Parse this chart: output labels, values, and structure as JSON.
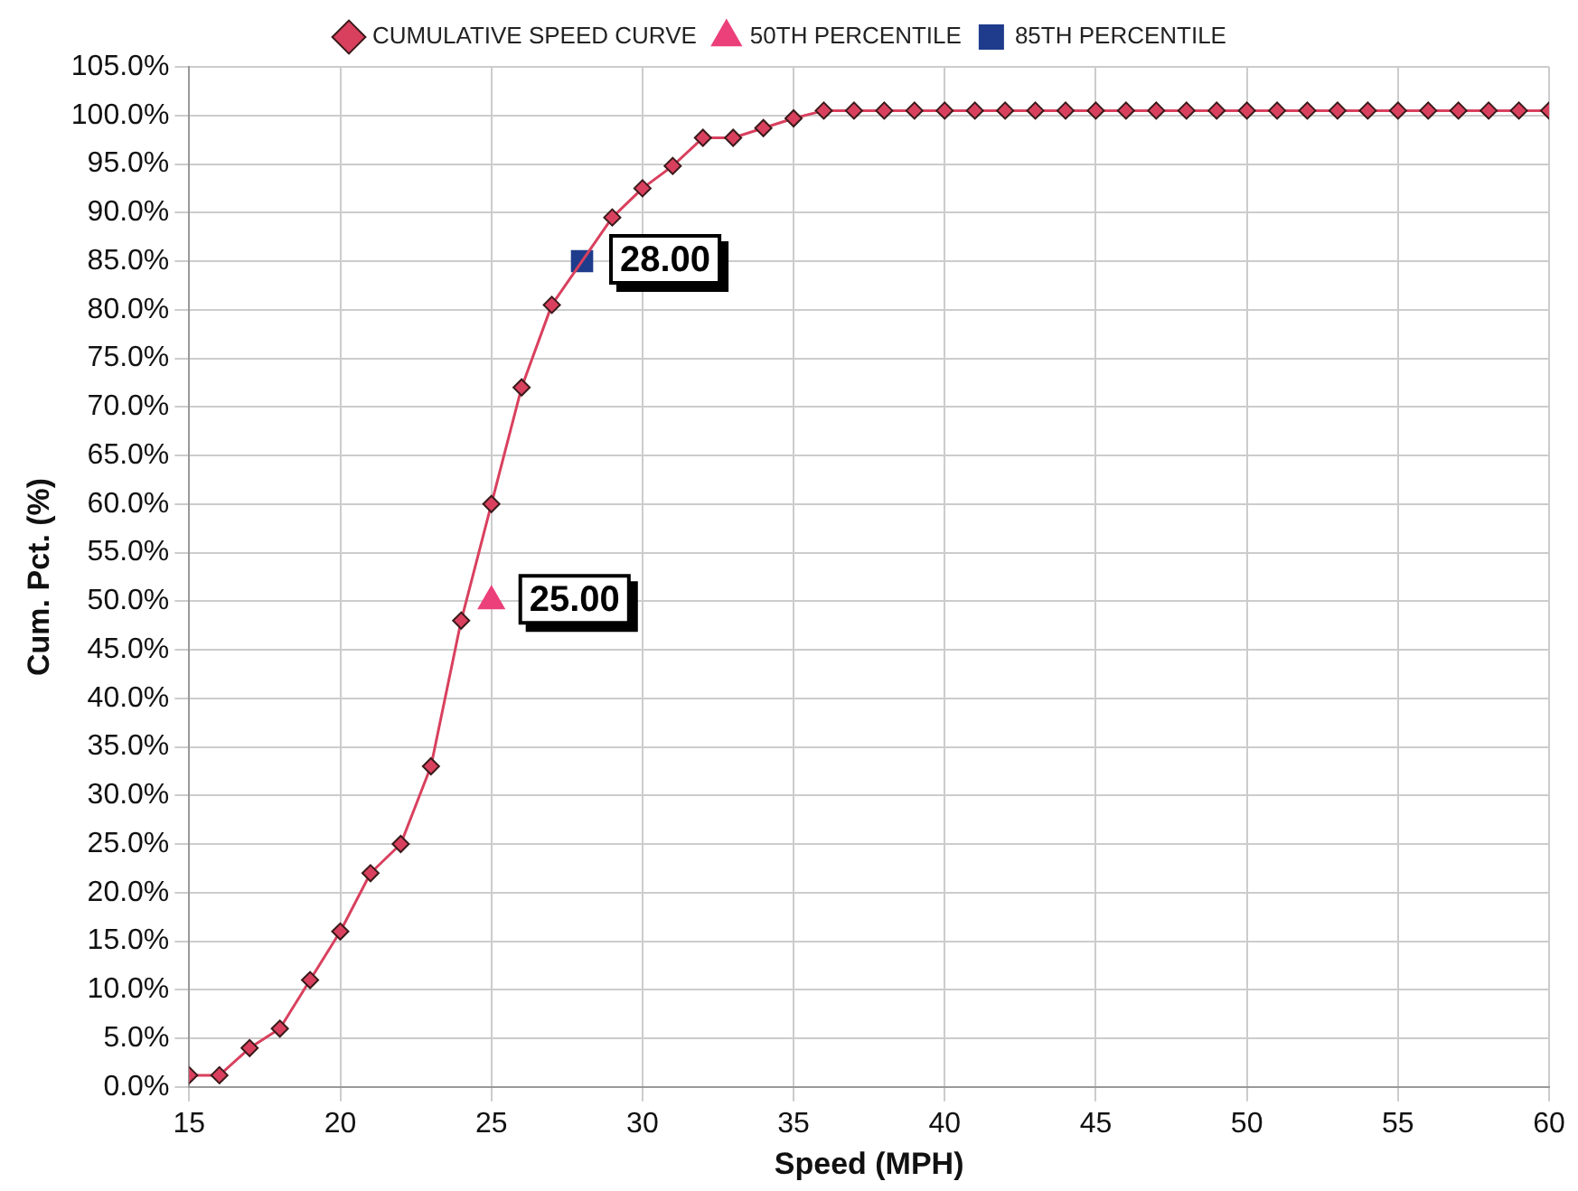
{
  "chart_data": {
    "type": "line",
    "xlabel": "Speed (MPH)",
    "ylabel": "Cum. Pct. (%)",
    "xlim": [
      15,
      60
    ],
    "xticks": [
      15,
      20,
      25,
      30,
      35,
      40,
      45,
      50,
      55,
      60
    ],
    "ylim": [
      0,
      105
    ],
    "yticks": [
      {
        "value": 0,
        "label": "0.0%"
      },
      {
        "value": 5,
        "label": "5.0%"
      },
      {
        "value": 10,
        "label": "10.0%"
      },
      {
        "value": 15,
        "label": "15.0%"
      },
      {
        "value": 20,
        "label": "20.0%"
      },
      {
        "value": 25,
        "label": "25.0%"
      },
      {
        "value": 30,
        "label": "30.0%"
      },
      {
        "value": 35,
        "label": "35.0%"
      },
      {
        "value": 40,
        "label": "40.0%"
      },
      {
        "value": 45,
        "label": "45.0%"
      },
      {
        "value": 50,
        "label": "50.0%"
      },
      {
        "value": 55,
        "label": "55.0%"
      },
      {
        "value": 60,
        "label": "60.0%"
      },
      {
        "value": 65,
        "label": "65.0%"
      },
      {
        "value": 70,
        "label": "70.0%"
      },
      {
        "value": 75,
        "label": "75.0%"
      },
      {
        "value": 80,
        "label": "80.0%"
      },
      {
        "value": 85,
        "label": "85.0%"
      },
      {
        "value": 90,
        "label": "90.0%"
      },
      {
        "value": 95,
        "label": "95.0%"
      },
      {
        "value": 100,
        "label": "100.0%"
      },
      {
        "value": 105,
        "label": "105.0%"
      }
    ],
    "grid": true,
    "legend": "top",
    "line_style": "solid",
    "series": [
      {
        "name": "CUMULATIVE SPEED CURVE",
        "type": "line",
        "marker": "diamond",
        "color": "#d9405e",
        "x": [
          15,
          16,
          17,
          18,
          19,
          20,
          21,
          22,
          23,
          24,
          25,
          26,
          27,
          28,
          29,
          30,
          31,
          32,
          33,
          34,
          35,
          36,
          37,
          38,
          39,
          40,
          41,
          42,
          43,
          44,
          45,
          46,
          47,
          48,
          49,
          50,
          51,
          52,
          53,
          54,
          55,
          56,
          57,
          58,
          59,
          60
        ],
        "values": [
          1.2,
          1.2,
          4,
          6,
          11,
          16,
          22,
          25,
          33,
          48,
          60,
          72,
          80.5,
          null,
          89.5,
          92.5,
          94.8,
          97.7,
          97.7,
          98.7,
          99.7,
          100.5,
          100.5,
          100.5,
          100.5,
          100.5,
          100.5,
          100.5,
          100.5,
          100.5,
          100.5,
          100.5,
          100.5,
          100.5,
          100.5,
          100.5,
          100.5,
          100.5,
          100.5,
          100.5,
          100.5,
          100.5,
          100.5,
          100.5,
          100.5,
          100.5
        ]
      },
      {
        "name": "50TH PERCENTILE",
        "type": "scatter",
        "marker": "triangle",
        "color": "#ec407a",
        "x": [
          25
        ],
        "values": [
          50
        ]
      },
      {
        "name": "85TH PERCENTILE",
        "type": "scatter",
        "marker": "square",
        "color": "#1f3c8c",
        "x": [
          28
        ],
        "values": [
          85
        ]
      }
    ],
    "annotations": [
      {
        "text": "25.00",
        "x": 25,
        "y": 50
      },
      {
        "text": "28.00",
        "x": 28,
        "y": 85
      }
    ]
  }
}
